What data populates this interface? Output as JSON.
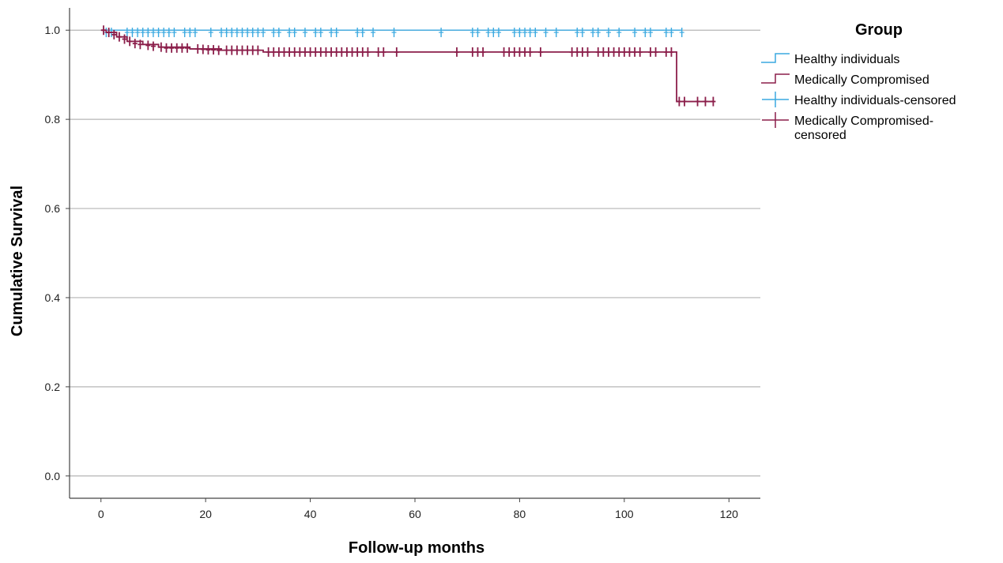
{
  "chart_data": {
    "type": "line",
    "subtype": "kaplan-meier",
    "xlabel": "Follow-up months",
    "ylabel": "Cumulative Survival",
    "xlim": [
      -6,
      126
    ],
    "ylim": [
      -0.05,
      1.05
    ],
    "x_ticks": [
      0,
      20,
      40,
      60,
      80,
      100,
      120
    ],
    "x_tick_labels": [
      "0",
      "20",
      "40",
      "60",
      "80",
      "100",
      "120"
    ],
    "y_ticks": [
      0.0,
      0.2,
      0.4,
      0.6,
      0.8,
      1.0
    ],
    "y_tick_labels": [
      "0.0",
      "0.2",
      "0.4",
      "0.6",
      "0.8",
      "1.0"
    ],
    "grid": "horizontal",
    "legend": {
      "title": "Group",
      "placement": "right",
      "entries": [
        {
          "kind": "step",
          "series": 0,
          "label": [
            "Healthy individuals"
          ]
        },
        {
          "kind": "step",
          "series": 1,
          "label": [
            "Medically Compromised"
          ]
        },
        {
          "kind": "censor",
          "series": 0,
          "label": [
            "Healthy individuals-censored"
          ]
        },
        {
          "kind": "censor",
          "series": 1,
          "label": [
            "Medically Compromised-",
            "censored"
          ]
        }
      ]
    },
    "series": [
      {
        "name": "Healthy individuals",
        "color": "#3aa9e0",
        "steps": [
          [
            0,
            1.0
          ],
          [
            111,
            1.0
          ]
        ],
        "censored": [
          [
            1.0,
            0.995
          ],
          [
            2.0,
            0.995
          ],
          [
            5.0,
            0.995
          ],
          [
            6.0,
            0.995
          ],
          [
            7.0,
            0.995
          ],
          [
            8.0,
            0.995
          ],
          [
            9.0,
            0.995
          ],
          [
            10.0,
            0.995
          ],
          [
            11.0,
            0.995
          ],
          [
            12.0,
            0.995
          ],
          [
            13.0,
            0.995
          ],
          [
            14.0,
            0.995
          ],
          [
            16.0,
            0.995
          ],
          [
            17.0,
            0.995
          ],
          [
            18.0,
            0.995
          ],
          [
            21.0,
            0.995
          ],
          [
            23.0,
            0.995
          ],
          [
            24.0,
            0.995
          ],
          [
            25.0,
            0.995
          ],
          [
            26.0,
            0.995
          ],
          [
            27.0,
            0.995
          ],
          [
            28.0,
            0.995
          ],
          [
            29.0,
            0.995
          ],
          [
            30.0,
            0.995
          ],
          [
            31.0,
            0.995
          ],
          [
            33.0,
            0.995
          ],
          [
            34.0,
            0.995
          ],
          [
            36.0,
            0.995
          ],
          [
            37.0,
            0.995
          ],
          [
            39.0,
            0.995
          ],
          [
            41.0,
            0.995
          ],
          [
            42.0,
            0.995
          ],
          [
            44.0,
            0.995
          ],
          [
            45.0,
            0.995
          ],
          [
            49.0,
            0.995
          ],
          [
            50.0,
            0.995
          ],
          [
            52.0,
            0.995
          ],
          [
            56.0,
            0.995
          ],
          [
            65.0,
            0.995
          ],
          [
            71.0,
            0.995
          ],
          [
            72.0,
            0.995
          ],
          [
            74.0,
            0.995
          ],
          [
            75.0,
            0.995
          ],
          [
            76.0,
            0.995
          ],
          [
            79.0,
            0.995
          ],
          [
            80.0,
            0.995
          ],
          [
            81.0,
            0.995
          ],
          [
            82.0,
            0.995
          ],
          [
            83.0,
            0.995
          ],
          [
            85.0,
            0.995
          ],
          [
            87.0,
            0.995
          ],
          [
            91.0,
            0.995
          ],
          [
            92.0,
            0.995
          ],
          [
            94.0,
            0.995
          ],
          [
            95.0,
            0.995
          ],
          [
            97.0,
            0.995
          ],
          [
            99.0,
            0.995
          ],
          [
            102.0,
            0.995
          ],
          [
            104.0,
            0.995
          ],
          [
            105.0,
            0.995
          ],
          [
            108.0,
            0.995
          ],
          [
            109.0,
            0.995
          ],
          [
            111.0,
            0.995
          ]
        ]
      },
      {
        "name": "Medically Compromised",
        "color": "#8b1e4a",
        "steps": [
          [
            0,
            1.0
          ],
          [
            1,
            0.995
          ],
          [
            3,
            0.985
          ],
          [
            5,
            0.975
          ],
          [
            8,
            0.968
          ],
          [
            11,
            0.962
          ],
          [
            17,
            0.958
          ],
          [
            23,
            0.955
          ],
          [
            31,
            0.951
          ],
          [
            110,
            0.951
          ],
          [
            110,
            0.84
          ],
          [
            117,
            0.84
          ]
        ],
        "censored": [
          [
            0.5,
            1.0
          ],
          [
            1.5,
            0.995
          ],
          [
            2.5,
            0.99
          ],
          [
            3.5,
            0.985
          ],
          [
            4.5,
            0.98
          ],
          [
            5.5,
            0.975
          ],
          [
            6.5,
            0.97
          ],
          [
            7.5,
            0.968
          ],
          [
            9.0,
            0.966
          ],
          [
            10.0,
            0.964
          ],
          [
            11.5,
            0.962
          ],
          [
            12.5,
            0.96
          ],
          [
            13.5,
            0.96
          ],
          [
            14.5,
            0.96
          ],
          [
            15.5,
            0.96
          ],
          [
            16.5,
            0.96
          ],
          [
            18.5,
            0.958
          ],
          [
            19.5,
            0.957
          ],
          [
            20.5,
            0.956
          ],
          [
            21.5,
            0.956
          ],
          [
            22.5,
            0.955
          ],
          [
            24.0,
            0.955
          ],
          [
            25.0,
            0.955
          ],
          [
            26.0,
            0.955
          ],
          [
            27.0,
            0.955
          ],
          [
            28.0,
            0.955
          ],
          [
            29.0,
            0.955
          ],
          [
            30.0,
            0.955
          ],
          [
            32.0,
            0.951
          ],
          [
            33.0,
            0.951
          ],
          [
            34.0,
            0.951
          ],
          [
            35.0,
            0.951
          ],
          [
            36.0,
            0.951
          ],
          [
            37.0,
            0.951
          ],
          [
            38.0,
            0.951
          ],
          [
            39.0,
            0.951
          ],
          [
            40.0,
            0.951
          ],
          [
            41.0,
            0.951
          ],
          [
            42.0,
            0.951
          ],
          [
            43.0,
            0.951
          ],
          [
            44.0,
            0.951
          ],
          [
            45.0,
            0.951
          ],
          [
            46.0,
            0.951
          ],
          [
            47.0,
            0.951
          ],
          [
            48.0,
            0.951
          ],
          [
            49.0,
            0.951
          ],
          [
            50.0,
            0.951
          ],
          [
            51.0,
            0.951
          ],
          [
            53.0,
            0.951
          ],
          [
            54.0,
            0.951
          ],
          [
            56.5,
            0.951
          ],
          [
            68.0,
            0.951
          ],
          [
            71.0,
            0.951
          ],
          [
            72.0,
            0.951
          ],
          [
            73.0,
            0.951
          ],
          [
            77.0,
            0.951
          ],
          [
            78.0,
            0.951
          ],
          [
            79.0,
            0.951
          ],
          [
            80.0,
            0.951
          ],
          [
            81.0,
            0.951
          ],
          [
            82.0,
            0.951
          ],
          [
            84.0,
            0.951
          ],
          [
            90.0,
            0.951
          ],
          [
            91.0,
            0.951
          ],
          [
            92.0,
            0.951
          ],
          [
            93.0,
            0.951
          ],
          [
            95.0,
            0.951
          ],
          [
            96.0,
            0.951
          ],
          [
            97.0,
            0.951
          ],
          [
            98.0,
            0.951
          ],
          [
            99.0,
            0.951
          ],
          [
            100.0,
            0.951
          ],
          [
            101.0,
            0.951
          ],
          [
            102.0,
            0.951
          ],
          [
            103.0,
            0.951
          ],
          [
            105.0,
            0.951
          ],
          [
            106.0,
            0.951
          ],
          [
            108.0,
            0.951
          ],
          [
            109.0,
            0.951
          ],
          [
            110.5,
            0.84
          ],
          [
            111.5,
            0.84
          ],
          [
            114.0,
            0.84
          ],
          [
            115.5,
            0.84
          ],
          [
            117.0,
            0.84
          ]
        ]
      }
    ]
  }
}
